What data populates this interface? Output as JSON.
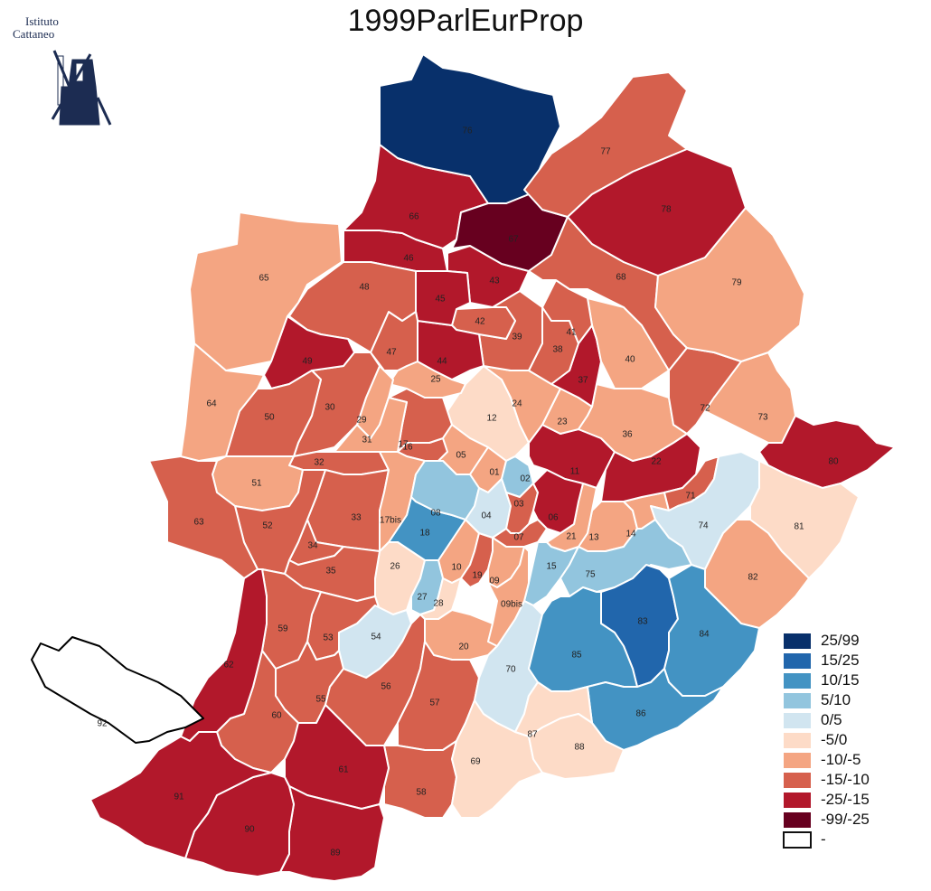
{
  "title": "1999ParlEurProp",
  "logo": {
    "line1": "Istituto",
    "line2": "Cattaneo",
    "icon": "windmill-icon"
  },
  "colors": {
    "c1": "#08306b",
    "c2": "#2166ac",
    "c3": "#4393c3",
    "c4": "#92c5de",
    "c5": "#d1e5f0",
    "c6": "#fddbc7",
    "c7": "#f4a582",
    "c8": "#d6604d",
    "c9": "#b2182b",
    "c10": "#67001f",
    "none": "#ffffff"
  },
  "legend": [
    {
      "label": "25/99",
      "class": "c1"
    },
    {
      "label": "15/25",
      "class": "c2"
    },
    {
      "label": "10/15",
      "class": "c3"
    },
    {
      "label": "5/10",
      "class": "c4"
    },
    {
      "label": "0/5",
      "class": "c5"
    },
    {
      "label": "-5/0",
      "class": "c6"
    },
    {
      "label": "-10/-5",
      "class": "c7"
    },
    {
      "label": "-15/-10",
      "class": "c8"
    },
    {
      "label": "-25/-15",
      "class": "c9"
    },
    {
      "label": "-99/-25",
      "class": "c10"
    },
    {
      "label": "-",
      "class": "none"
    }
  ],
  "zones": {
    "76": "c1",
    "77": "c8",
    "78": "c9",
    "66": "c9",
    "67": "c10",
    "65": "c7",
    "46": "c9",
    "43": "c9",
    "68": "c8",
    "79": "c7",
    "48": "c8",
    "45": "c9",
    "42": "c8",
    "39": "c8",
    "41": "c8",
    "38": "c8",
    "40": "c7",
    "49": "c9",
    "47": "c8",
    "44": "c9",
    "37": "c9",
    "25": "c7",
    "64": "c7",
    "50": "c8",
    "30": "c8",
    "29": "c7",
    "12": "c6",
    "24": "c7",
    "72": "c8",
    "73": "c7",
    "31": "c7",
    "17": "c8",
    "16": "c8",
    "23": "c7",
    "36": "c7",
    "80": "c9",
    "05": "c7",
    "32": "c8",
    "01": "c7",
    "02": "c4",
    "11": "c9",
    "22": "c9",
    "51": "c7",
    "63": "c8",
    "71": "c8",
    "74": "c5",
    "81": "c6",
    "52": "c8",
    "33": "c8",
    "17bis": "c7",
    "08": "c4",
    "04": "c5",
    "03": "c8",
    "06": "c9",
    "18": "c3",
    "07": "c8",
    "21": "c7",
    "13": "c7",
    "14": "c7",
    "34": "c8",
    "26": "c6",
    "10": "c7",
    "19": "c8",
    "09": "c7",
    "15": "c4",
    "75": "c4",
    "35": "c8",
    "27": "c4",
    "28": "c6",
    "09bis": "c7",
    "82": "c7",
    "59": "c8",
    "83": "c2",
    "84": "c3",
    "54": "c5",
    "53": "c8",
    "62": "c9",
    "20": "c7",
    "85": "c3",
    "70": "c5",
    "56": "c8",
    "55": "c8",
    "57": "c8",
    "92": "none",
    "60": "c8",
    "86": "c3",
    "87": "c6",
    "88": "c6",
    "69": "c6",
    "61": "c9",
    "58": "c8",
    "91": "c9",
    "90": "c9",
    "89": "c9"
  }
}
